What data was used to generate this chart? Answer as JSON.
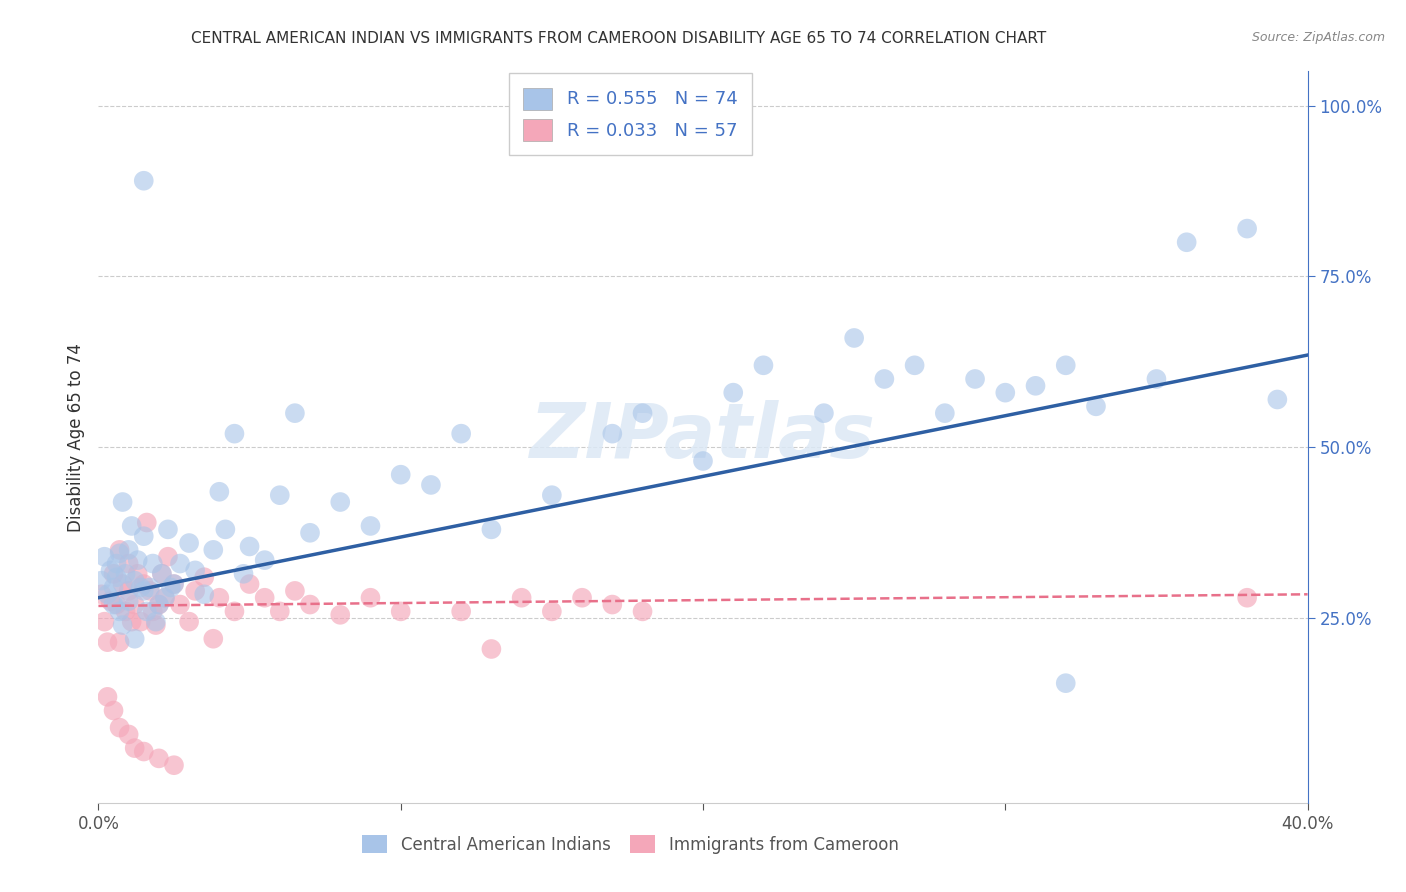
{
  "title": "CENTRAL AMERICAN INDIAN VS IMMIGRANTS FROM CAMEROON DISABILITY AGE 65 TO 74 CORRELATION CHART",
  "source": "Source: ZipAtlas.com",
  "ylabel": "Disability Age 65 to 74",
  "footer_label1": "Central American Indians",
  "footer_label2": "Immigrants from Cameroon",
  "blue_color": "#a8c4e8",
  "pink_color": "#f4a7b9",
  "blue_line_color": "#2e5fa3",
  "pink_line_color": "#e8708a",
  "watermark": "ZIPatlas",
  "legend_color": "#4472c4",
  "xlim": [
    0.0,
    0.4
  ],
  "ylim": [
    -0.02,
    1.05
  ],
  "blue_scatter_x": [
    0.001,
    0.002,
    0.003,
    0.004,
    0.005,
    0.005,
    0.006,
    0.006,
    0.007,
    0.007,
    0.008,
    0.009,
    0.01,
    0.01,
    0.011,
    0.012,
    0.013,
    0.014,
    0.015,
    0.015,
    0.016,
    0.017,
    0.018,
    0.019,
    0.02,
    0.021,
    0.022,
    0.023,
    0.024,
    0.025,
    0.027,
    0.03,
    0.032,
    0.035,
    0.038,
    0.04,
    0.042,
    0.045,
    0.048,
    0.05,
    0.055,
    0.06,
    0.065,
    0.07,
    0.08,
    0.09,
    0.1,
    0.11,
    0.12,
    0.13,
    0.15,
    0.17,
    0.18,
    0.2,
    0.21,
    0.22,
    0.24,
    0.25,
    0.26,
    0.27,
    0.28,
    0.29,
    0.3,
    0.31,
    0.32,
    0.33,
    0.35,
    0.36,
    0.38,
    0.39,
    0.008,
    0.012,
    0.015,
    0.32
  ],
  "blue_scatter_y": [
    0.305,
    0.34,
    0.285,
    0.32,
    0.295,
    0.27,
    0.31,
    0.33,
    0.26,
    0.345,
    0.42,
    0.315,
    0.35,
    0.275,
    0.385,
    0.305,
    0.335,
    0.295,
    0.29,
    0.37,
    0.26,
    0.295,
    0.33,
    0.245,
    0.27,
    0.315,
    0.28,
    0.38,
    0.295,
    0.3,
    0.33,
    0.36,
    0.32,
    0.285,
    0.35,
    0.435,
    0.38,
    0.52,
    0.315,
    0.355,
    0.335,
    0.43,
    0.55,
    0.375,
    0.42,
    0.385,
    0.46,
    0.445,
    0.52,
    0.38,
    0.43,
    0.52,
    0.55,
    0.48,
    0.58,
    0.62,
    0.55,
    0.66,
    0.6,
    0.62,
    0.55,
    0.6,
    0.58,
    0.59,
    0.62,
    0.56,
    0.6,
    0.8,
    0.82,
    0.57,
    0.24,
    0.22,
    0.89,
    0.155
  ],
  "pink_scatter_x": [
    0.001,
    0.002,
    0.003,
    0.004,
    0.005,
    0.006,
    0.007,
    0.007,
    0.008,
    0.009,
    0.01,
    0.01,
    0.011,
    0.012,
    0.013,
    0.014,
    0.015,
    0.016,
    0.017,
    0.018,
    0.019,
    0.02,
    0.021,
    0.022,
    0.023,
    0.025,
    0.027,
    0.03,
    0.032,
    0.035,
    0.038,
    0.04,
    0.045,
    0.05,
    0.055,
    0.06,
    0.065,
    0.07,
    0.08,
    0.09,
    0.1,
    0.12,
    0.13,
    0.14,
    0.15,
    0.16,
    0.17,
    0.18,
    0.003,
    0.005,
    0.007,
    0.01,
    0.012,
    0.015,
    0.02,
    0.025,
    0.38
  ],
  "pink_scatter_y": [
    0.285,
    0.245,
    0.215,
    0.275,
    0.315,
    0.27,
    0.215,
    0.35,
    0.3,
    0.26,
    0.29,
    0.33,
    0.245,
    0.27,
    0.315,
    0.245,
    0.3,
    0.39,
    0.29,
    0.26,
    0.24,
    0.27,
    0.315,
    0.28,
    0.34,
    0.3,
    0.27,
    0.245,
    0.29,
    0.31,
    0.22,
    0.28,
    0.26,
    0.3,
    0.28,
    0.26,
    0.29,
    0.27,
    0.255,
    0.28,
    0.26,
    0.26,
    0.205,
    0.28,
    0.26,
    0.28,
    0.27,
    0.26,
    0.135,
    0.115,
    0.09,
    0.08,
    0.06,
    0.055,
    0.045,
    0.035,
    0.28
  ],
  "blue_line_x": [
    0.0,
    0.4
  ],
  "blue_line_y": [
    0.28,
    0.635
  ],
  "pink_line_x": [
    0.0,
    0.4
  ],
  "pink_line_y": [
    0.268,
    0.285
  ]
}
